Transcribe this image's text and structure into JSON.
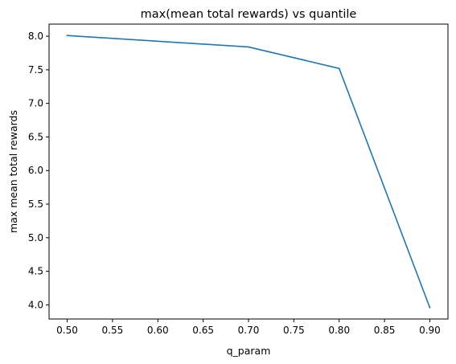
{
  "chart_data": {
    "type": "line",
    "title": "max(mean total rewards) vs quantile",
    "xlabel": "q_param",
    "ylabel": "max mean total rewards",
    "xlim": [
      0.48,
      0.92
    ],
    "ylim": [
      3.79,
      8.18
    ],
    "xticks": [
      0.5,
      0.55,
      0.6,
      0.65,
      0.7,
      0.75,
      0.8,
      0.85,
      0.9
    ],
    "xtick_labels": [
      "0.50",
      "0.55",
      "0.60",
      "0.65",
      "0.70",
      "0.75",
      "0.80",
      "0.85",
      "0.90"
    ],
    "yticks": [
      4.0,
      4.5,
      5.0,
      5.5,
      6.0,
      6.5,
      7.0,
      7.5,
      8.0
    ],
    "ytick_labels": [
      "4.0",
      "4.5",
      "5.0",
      "5.5",
      "6.0",
      "6.5",
      "7.0",
      "7.5",
      "8.0"
    ],
    "grid": false,
    "series": [
      {
        "x": [
          0.5,
          0.7,
          0.8,
          0.9
        ],
        "y": [
          8.01,
          7.84,
          7.52,
          3.96
        ],
        "color": "#1f77b4"
      }
    ]
  }
}
